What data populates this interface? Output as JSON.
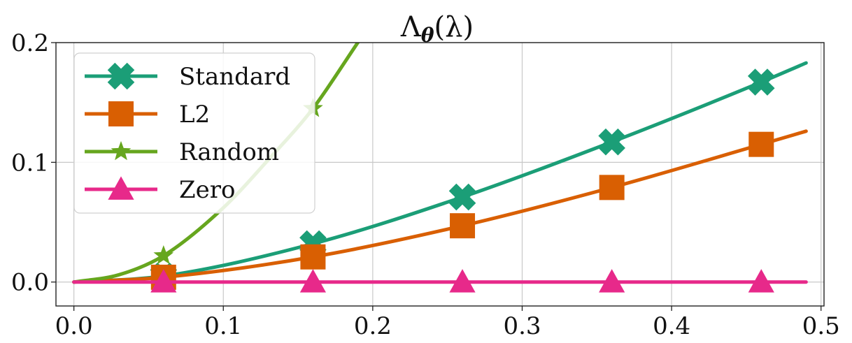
{
  "chart_data": {
    "type": "line",
    "title": "Λ_θ(λ)",
    "title_parts": {
      "base": "Λ",
      "sub": "θ",
      "arg": "(λ)"
    },
    "xlabel": "",
    "ylabel": "",
    "xlim": [
      -0.012,
      0.502
    ],
    "ylim": [
      -0.02,
      0.2
    ],
    "xticks": [
      0.0,
      0.1,
      0.2,
      0.3,
      0.4,
      0.5
    ],
    "xtick_labels": [
      "0.0",
      "0.1",
      "0.2",
      "0.3",
      "0.4",
      "0.5"
    ],
    "yticks": [
      0.0,
      0.1,
      0.2
    ],
    "ytick_labels": [
      "0.0",
      "0.1",
      "0.2"
    ],
    "grid": true,
    "legend_position": "top-left",
    "series": [
      {
        "name": "Standard",
        "color": "#1b9e77",
        "marker": "x",
        "x": [
          0.0,
          0.06,
          0.16,
          0.26,
          0.36,
          0.46,
          0.49
        ],
        "y": [
          0.0,
          0.005,
          0.032,
          0.071,
          0.117,
          0.167,
          0.183
        ],
        "marker_x": [
          0.06,
          0.16,
          0.26,
          0.36,
          0.46
        ]
      },
      {
        "name": "L2",
        "color": "#d95f02",
        "marker": "square",
        "x": [
          0.0,
          0.06,
          0.16,
          0.26,
          0.36,
          0.46,
          0.49
        ],
        "y": [
          0.0,
          0.004,
          0.021,
          0.047,
          0.079,
          0.115,
          0.126
        ],
        "marker_x": [
          0.06,
          0.16,
          0.26,
          0.36,
          0.46
        ]
      },
      {
        "name": "Random",
        "color": "#66a61e",
        "marker": "star",
        "x": [
          0.0,
          0.03,
          0.06,
          0.1,
          0.13,
          0.16,
          0.19
        ],
        "y": [
          0.0,
          0.006,
          0.022,
          0.062,
          0.102,
          0.145,
          0.2
        ],
        "marker_x": [
          0.06,
          0.16
        ]
      },
      {
        "name": "Zero",
        "color": "#e7298a",
        "marker": "triangle",
        "x": [
          0.0,
          0.49
        ],
        "y": [
          0.0,
          0.0
        ],
        "marker_x": [
          0.06,
          0.16,
          0.26,
          0.36,
          0.46
        ]
      }
    ]
  }
}
